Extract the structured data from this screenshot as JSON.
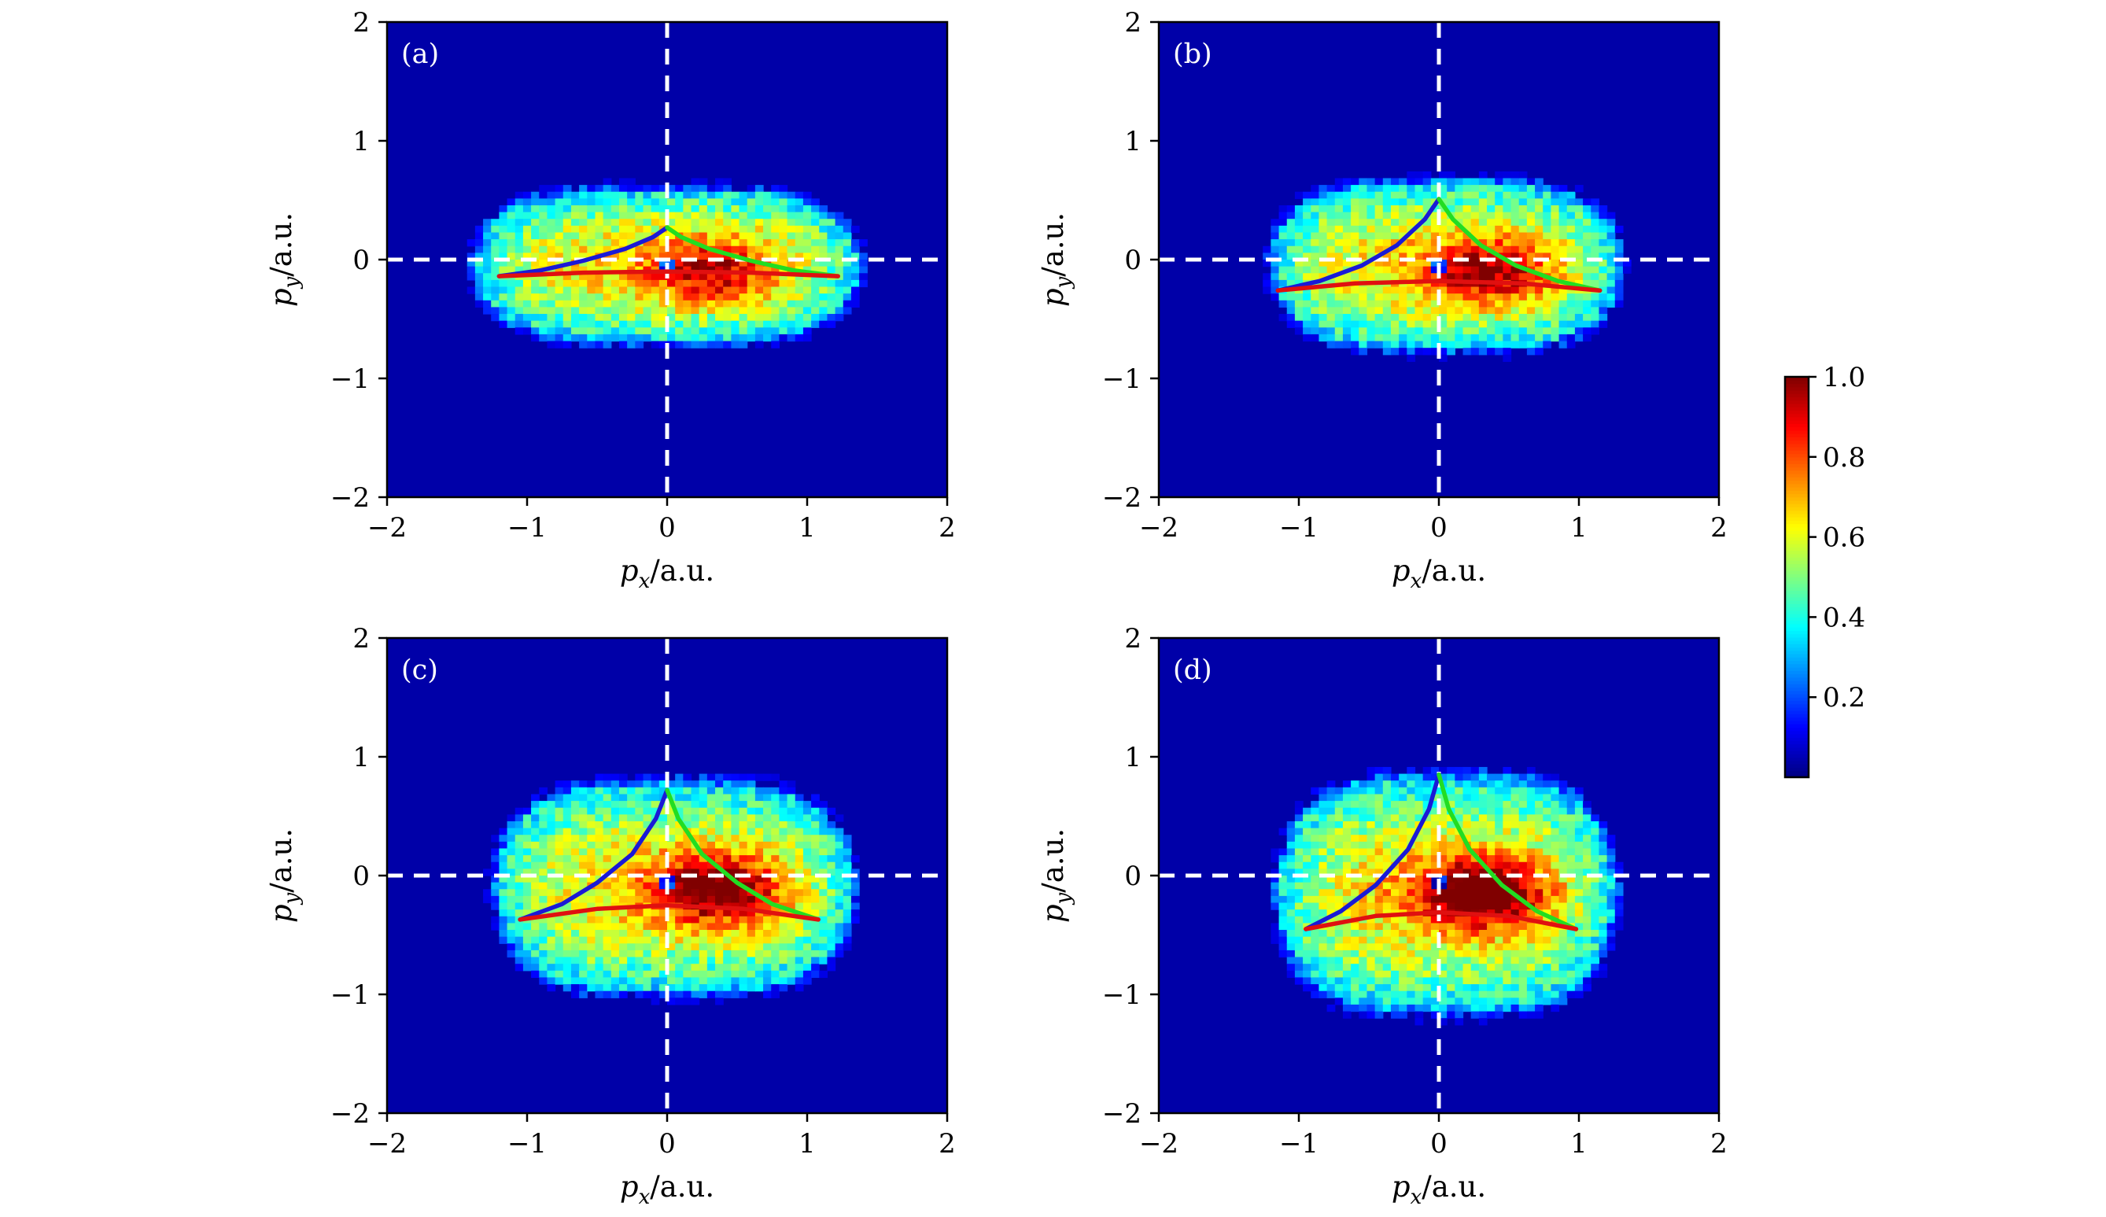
{
  "colorbar": {
    "ticks": [
      "0.2",
      "0.4",
      "0.6",
      "0.8",
      "1.0"
    ],
    "tick_values": [
      0.2,
      0.4,
      0.6,
      0.8,
      1.0
    ],
    "range": [
      0.0,
      1.0
    ],
    "colormap": "jet"
  },
  "chart_data": [
    {
      "type": "heatmap",
      "panel_label": "(a)",
      "xlabel": "px/a.u.",
      "ylabel": "py/a.u.",
      "xlim": [
        -2,
        2
      ],
      "ylim": [
        -2,
        2
      ],
      "xticks": [
        "−2",
        "−1",
        "0",
        "1",
        "2"
      ],
      "yticks": [
        "−2",
        "−1",
        "0",
        "1",
        "2"
      ],
      "tick_values": [
        -2,
        -1,
        0,
        1,
        2
      ],
      "reference_lines": {
        "x": 0,
        "y": 0,
        "style": "dashed",
        "color": "#ffffff"
      },
      "distribution": {
        "center": [
          0.0,
          -0.05
        ],
        "x_halfwidth": 1.35,
        "y_halfwidth": 0.62,
        "peak": [
          0.3,
          -0.1
        ],
        "skew": 0.3
      },
      "curves": [
        {
          "color": "#1a1ad6",
          "x": [
            -1.2,
            -0.9,
            -0.6,
            -0.3,
            -0.1,
            0.0
          ],
          "y": [
            -0.14,
            -0.09,
            -0.01,
            0.09,
            0.19,
            0.27
          ]
        },
        {
          "color": "#22dd22",
          "x": [
            0.0,
            0.1,
            0.3,
            0.6,
            0.9,
            1.22
          ],
          "y": [
            0.27,
            0.19,
            0.09,
            -0.01,
            -0.09,
            -0.14
          ]
        },
        {
          "color": "#e01010",
          "x": [
            -1.2,
            -0.6,
            0.0,
            0.6,
            1.22
          ],
          "y": [
            -0.14,
            -0.11,
            -0.1,
            -0.11,
            -0.14
          ]
        }
      ]
    },
    {
      "type": "heatmap",
      "panel_label": "(b)",
      "xlabel": "px/a.u.",
      "ylabel": "py/a.u.",
      "xlim": [
        -2,
        2
      ],
      "ylim": [
        -2,
        2
      ],
      "xticks": [
        "−2",
        "−1",
        "0",
        "1",
        "2"
      ],
      "yticks": [
        "−2",
        "−1",
        "0",
        "1",
        "2"
      ],
      "tick_values": [
        -2,
        -1,
        0,
        1,
        2
      ],
      "reference_lines": {
        "x": 0,
        "y": 0,
        "style": "dashed",
        "color": "#ffffff"
      },
      "distribution": {
        "center": [
          0.05,
          -0.05
        ],
        "x_halfwidth": 1.22,
        "y_halfwidth": 0.68,
        "peak": [
          0.35,
          -0.1
        ],
        "skew": 0.35
      },
      "curves": [
        {
          "color": "#1a1ad6",
          "x": [
            -1.15,
            -0.85,
            -0.55,
            -0.3,
            -0.1,
            0.0
          ],
          "y": [
            -0.26,
            -0.18,
            -0.05,
            0.12,
            0.34,
            0.51
          ]
        },
        {
          "color": "#22dd22",
          "x": [
            0.0,
            0.1,
            0.3,
            0.55,
            0.85,
            1.15
          ],
          "y": [
            0.51,
            0.34,
            0.12,
            -0.05,
            -0.18,
            -0.26
          ]
        },
        {
          "color": "#e01010",
          "x": [
            -1.15,
            -0.6,
            0.0,
            0.6,
            1.15
          ],
          "y": [
            -0.26,
            -0.2,
            -0.18,
            -0.2,
            -0.26
          ]
        }
      ]
    },
    {
      "type": "heatmap",
      "panel_label": "(c)",
      "xlabel": "px/a.u.",
      "ylabel": "py/a.u.",
      "xlim": [
        -2,
        2
      ],
      "ylim": [
        -2,
        2
      ],
      "xticks": [
        "−2",
        "−1",
        "0",
        "1",
        "2"
      ],
      "yticks": [
        "−2",
        "−1",
        "0",
        "1",
        "2"
      ],
      "tick_values": [
        -2,
        -1,
        0,
        1,
        2
      ],
      "reference_lines": {
        "x": 0,
        "y": 0,
        "style": "dashed",
        "color": "#ffffff"
      },
      "distribution": {
        "center": [
          0.05,
          -0.1
        ],
        "x_halfwidth": 1.25,
        "y_halfwidth": 0.85,
        "peak": [
          0.35,
          -0.12
        ],
        "skew": 0.45
      },
      "curves": [
        {
          "color": "#1a1ad6",
          "x": [
            -1.05,
            -0.75,
            -0.5,
            -0.25,
            -0.08,
            0.0
          ],
          "y": [
            -0.37,
            -0.24,
            -0.06,
            0.18,
            0.48,
            0.72
          ]
        },
        {
          "color": "#22dd22",
          "x": [
            0.0,
            0.08,
            0.25,
            0.5,
            0.75,
            1.08
          ],
          "y": [
            0.72,
            0.48,
            0.18,
            -0.06,
            -0.24,
            -0.37
          ]
        },
        {
          "color": "#e01010",
          "x": [
            -1.05,
            -0.5,
            0.0,
            0.55,
            1.08
          ],
          "y": [
            -0.37,
            -0.28,
            -0.25,
            -0.28,
            -0.37
          ]
        }
      ]
    },
    {
      "type": "heatmap",
      "panel_label": "(d)",
      "xlabel": "px/a.u.",
      "ylabel": "py/a.u.",
      "xlim": [
        -2,
        2
      ],
      "ylim": [
        -2,
        2
      ],
      "xticks": [
        "−2",
        "−1",
        "0",
        "1",
        "2"
      ],
      "yticks": [
        "−2",
        "−1",
        "0",
        "1",
        "2"
      ],
      "tick_values": [
        -2,
        -1,
        0,
        1,
        2
      ],
      "reference_lines": {
        "x": 0,
        "y": 0,
        "style": "dashed",
        "color": "#ffffff"
      },
      "distribution": {
        "center": [
          0.05,
          -0.15
        ],
        "x_halfwidth": 1.18,
        "y_halfwidth": 0.95,
        "peak": [
          0.3,
          -0.15
        ],
        "skew": 0.55
      },
      "curves": [
        {
          "color": "#1a1ad6",
          "x": [
            -0.95,
            -0.7,
            -0.45,
            -0.22,
            -0.07,
            0.0
          ],
          "y": [
            -0.45,
            -0.3,
            -0.08,
            0.22,
            0.56,
            0.85
          ]
        },
        {
          "color": "#22dd22",
          "x": [
            0.0,
            0.07,
            0.22,
            0.45,
            0.7,
            0.98
          ],
          "y": [
            0.85,
            0.56,
            0.22,
            -0.08,
            -0.3,
            -0.45
          ]
        },
        {
          "color": "#e01010",
          "x": [
            -0.95,
            -0.45,
            0.0,
            0.5,
            0.98
          ],
          "y": [
            -0.45,
            -0.34,
            -0.31,
            -0.34,
            -0.45
          ]
        }
      ]
    }
  ]
}
